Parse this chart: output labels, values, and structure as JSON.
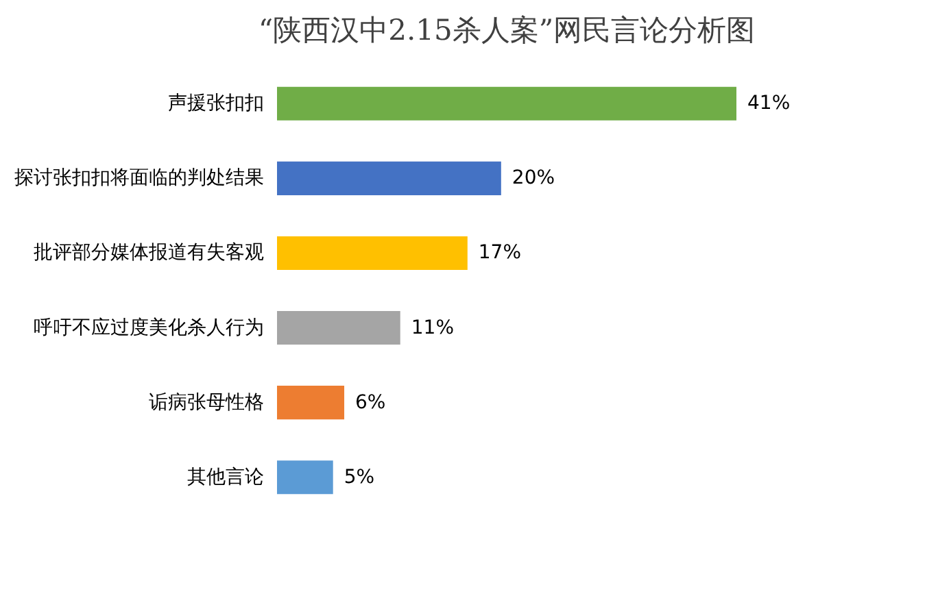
{
  "chart_data": {
    "type": "bar",
    "orientation": "horizontal",
    "title": "“陕西汉中2.15杀人案”网民言论分析图",
    "categories": [
      "声援张扣扣",
      "探讨张扣扣将面临的判处结果",
      "批评部分媒体报道有失客观",
      "呼吁不应过度美化杀人行为",
      "诟病张母性格",
      "其他言论"
    ],
    "values": [
      41,
      20,
      17,
      11,
      6,
      5
    ],
    "colors": [
      "#70ad47",
      "#4472c4",
      "#ffc000",
      "#a5a5a5",
      "#ed7d31",
      "#5b9bd5"
    ],
    "value_labels": [
      "41%",
      "20%",
      "17%",
      "11%",
      "6%",
      "5%"
    ],
    "grid": false
  }
}
